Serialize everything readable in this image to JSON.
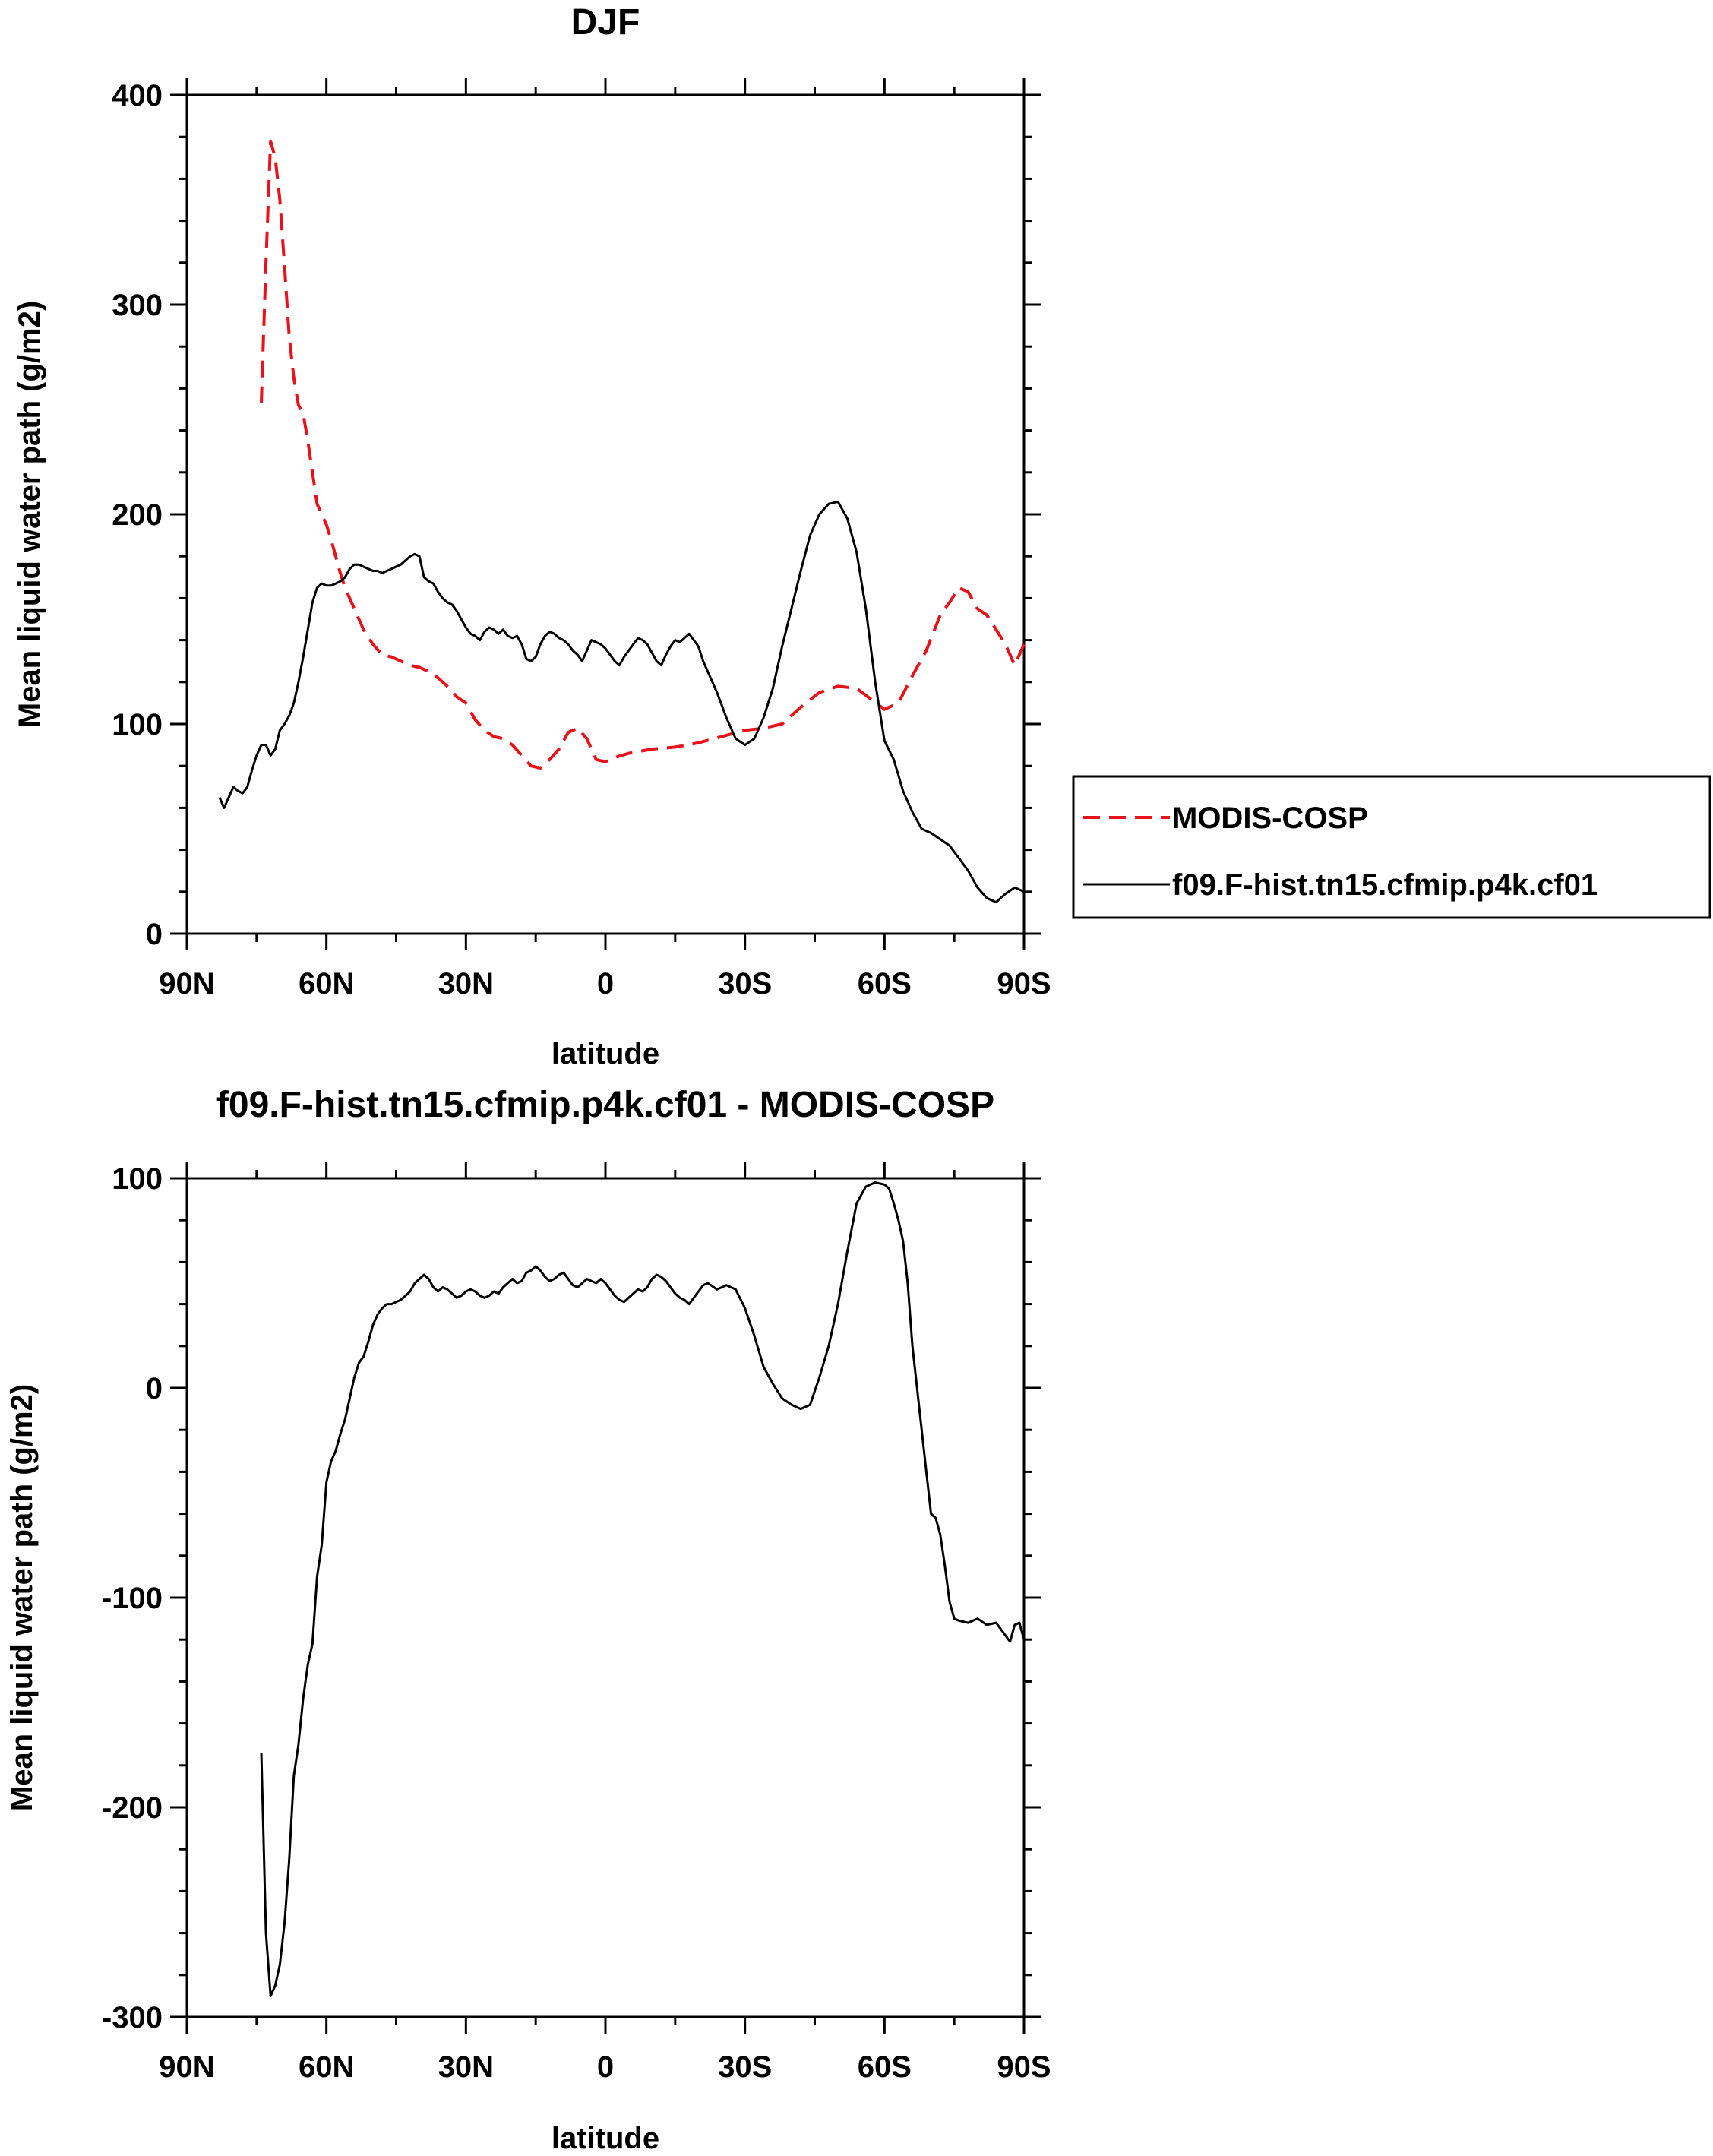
{
  "chart_data": [
    {
      "type": "line",
      "title": "DJF",
      "xlabel": "latitude",
      "ylabel": "Mean liquid water path (g/m2)",
      "xlim": [
        90,
        -90
      ],
      "ylim": [
        0,
        400
      ],
      "x_ticks": [
        {
          "value": 90,
          "label": "90N"
        },
        {
          "value": 60,
          "label": "60N"
        },
        {
          "value": 30,
          "label": "30N"
        },
        {
          "value": 0,
          "label": "0"
        },
        {
          "value": -30,
          "label": "30S"
        },
        {
          "value": -60,
          "label": "60S"
        },
        {
          "value": -90,
          "label": "90S"
        }
      ],
      "y_ticks": [
        0,
        100,
        200,
        300,
        400
      ],
      "legend_position": "right",
      "series": [
        {
          "name": "MODIS-COSP",
          "color": "#e8121a",
          "dash": "dashed",
          "x": [
            74,
            73,
            72,
            71,
            70,
            69,
            68,
            67,
            66,
            65,
            64,
            63,
            62,
            61,
            60,
            59,
            58,
            57,
            56,
            55,
            54,
            53,
            52,
            50,
            48,
            46,
            44,
            42,
            40,
            38,
            36,
            34,
            32,
            30,
            28,
            26,
            24,
            22,
            20,
            18,
            16,
            14,
            12,
            10,
            8,
            6,
            4,
            2,
            0,
            -2,
            -5,
            -10,
            -15,
            -20,
            -25,
            -30,
            -34,
            -38,
            -42,
            -46,
            -50,
            -54,
            -57,
            -60,
            -63,
            -66,
            -69,
            -72,
            -74,
            -76,
            -78,
            -80,
            -82,
            -84,
            -86,
            -88,
            -90
          ],
          "y": [
            253,
            320,
            378,
            370,
            350,
            318,
            285,
            265,
            252,
            248,
            235,
            220,
            205,
            200,
            195,
            188,
            180,
            172,
            165,
            160,
            155,
            150,
            145,
            138,
            133,
            132,
            130,
            128,
            127,
            125,
            122,
            118,
            113,
            110,
            102,
            97,
            94,
            93,
            90,
            85,
            80,
            79,
            83,
            88,
            96,
            98,
            93,
            83,
            82,
            84,
            86,
            88,
            89,
            91,
            94,
            97,
            98,
            100,
            108,
            115,
            118,
            117,
            112,
            107,
            110,
            123,
            135,
            152,
            158,
            165,
            163,
            155,
            152,
            145,
            138,
            128,
            138
          ]
        },
        {
          "name": "f09.F-hist.tn15.cfmip.p4k.cf01",
          "color": "#000000",
          "dash": "solid",
          "x": [
            83,
            82,
            81,
            80,
            79,
            78,
            77,
            76,
            75,
            74,
            73,
            72,
            71,
            70,
            69,
            68,
            67,
            66,
            65,
            64,
            63,
            62,
            61,
            60,
            59,
            58,
            57,
            56,
            55,
            54,
            53,
            52,
            51,
            50,
            49,
            48,
            47,
            46,
            45,
            44,
            43,
            42,
            41,
            40,
            39,
            38,
            37,
            36,
            35,
            34,
            33,
            32,
            31,
            30,
            29,
            28,
            27,
            26,
            25,
            24,
            23,
            22,
            21,
            20,
            19,
            18,
            17,
            16,
            15,
            14,
            13,
            12,
            11,
            10,
            9,
            8,
            7,
            6,
            5,
            4,
            3,
            2,
            1,
            0,
            -1,
            -2,
            -3,
            -4,
            -5,
            -6,
            -7,
            -8,
            -9,
            -10,
            -11,
            -12,
            -13,
            -14,
            -15,
            -16,
            -17,
            -18,
            -19,
            -20,
            -21,
            -22,
            -24,
            -26,
            -28,
            -30,
            -32,
            -34,
            -36,
            -38,
            -40,
            -42,
            -44,
            -46,
            -48,
            -50,
            -52,
            -54,
            -56,
            -58,
            -60,
            -62,
            -64,
            -66,
            -68,
            -70,
            -72,
            -74,
            -76,
            -78,
            -80,
            -82,
            -84,
            -86,
            -88,
            -90
          ],
          "y": [
            65,
            60,
            65,
            70,
            68,
            67,
            70,
            78,
            85,
            90,
            90,
            85,
            88,
            97,
            100,
            104,
            110,
            120,
            132,
            145,
            158,
            165,
            167,
            166,
            166,
            167,
            168,
            170,
            174,
            176,
            176,
            175,
            174,
            173,
            173,
            172,
            173,
            174,
            175,
            176,
            178,
            180,
            181,
            180,
            170,
            168,
            167,
            163,
            160,
            158,
            157,
            154,
            150,
            146,
            143,
            142,
            140,
            144,
            146,
            145,
            143,
            145,
            142,
            141,
            142,
            138,
            131,
            130,
            132,
            138,
            142,
            144,
            143,
            141,
            140,
            138,
            135,
            133,
            130,
            135,
            140,
            139,
            138,
            136,
            133,
            130,
            128,
            132,
            135,
            138,
            141,
            140,
            138,
            134,
            130,
            128,
            133,
            137,
            140,
            139,
            141,
            143,
            140,
            137,
            130,
            125,
            115,
            103,
            93,
            90,
            93,
            103,
            117,
            137,
            155,
            173,
            190,
            200,
            205,
            206,
            198,
            182,
            155,
            120,
            92,
            83,
            68,
            58,
            50,
            48,
            45,
            42,
            36,
            30,
            22,
            17,
            15,
            19,
            22,
            20
          ]
        }
      ]
    },
    {
      "type": "line",
      "title": "f09.F-hist.tn15.cfmip.p4k.cf01 - MODIS-COSP",
      "xlabel": "latitude",
      "ylabel": "Mean liquid water path (g/m2)",
      "xlim": [
        90,
        -90
      ],
      "ylim": [
        -300,
        100
      ],
      "x_ticks": [
        {
          "value": 90,
          "label": "90N"
        },
        {
          "value": 60,
          "label": "60N"
        },
        {
          "value": 30,
          "label": "30N"
        },
        {
          "value": 0,
          "label": "0"
        },
        {
          "value": -30,
          "label": "30S"
        },
        {
          "value": -60,
          "label": "60S"
        },
        {
          "value": -90,
          "label": "90S"
        }
      ],
      "y_ticks": [
        -300,
        -200,
        -100,
        0,
        100
      ],
      "series": [
        {
          "color": "#000000",
          "dash": "solid",
          "x": [
            74,
            73,
            72,
            71,
            70,
            69,
            68,
            67,
            66,
            65,
            64,
            63,
            62,
            61,
            60,
            59,
            58,
            57,
            56,
            55,
            54,
            53,
            52,
            51,
            50,
            49,
            48,
            47,
            46,
            45,
            44,
            43,
            42,
            41,
            40,
            39,
            38,
            37,
            36,
            35,
            34,
            33,
            32,
            31,
            30,
            29,
            28,
            27,
            26,
            25,
            24,
            23,
            22,
            21,
            20,
            19,
            18,
            17,
            16,
            15,
            14,
            13,
            12,
            11,
            10,
            9,
            8,
            7,
            6,
            5,
            4,
            3,
            2,
            1,
            0,
            -1,
            -2,
            -3,
            -4,
            -5,
            -6,
            -7,
            -8,
            -9,
            -10,
            -11,
            -12,
            -13,
            -14,
            -15,
            -16,
            -17,
            -18,
            -19,
            -20,
            -21,
            -22,
            -24,
            -26,
            -28,
            -30,
            -32,
            -34,
            -36,
            -38,
            -40,
            -42,
            -44,
            -46,
            -48,
            -50,
            -52,
            -54,
            -56,
            -58,
            -60,
            -61,
            -62,
            -63,
            -64,
            -65,
            -66,
            -67,
            -68,
            -69,
            -70,
            -71,
            -72,
            -73,
            -74,
            -75,
            -76,
            -78,
            -80,
            -82,
            -84,
            -86,
            -87,
            -88,
            -89,
            -90
          ],
          "y": [
            -174,
            -260,
            -290,
            -285,
            -275,
            -255,
            -225,
            -185,
            -170,
            -148,
            -132,
            -122,
            -90,
            -75,
            -45,
            -35,
            -30,
            -22,
            -15,
            -5,
            5,
            12,
            15,
            22,
            30,
            35,
            38,
            40,
            40,
            41,
            42,
            44,
            46,
            50,
            52,
            54,
            52,
            48,
            46,
            48,
            47,
            45,
            43,
            44,
            46,
            47,
            46,
            44,
            43,
            44,
            46,
            45,
            48,
            50,
            52,
            50,
            51,
            55,
            56,
            58,
            56,
            53,
            51,
            52,
            54,
            55,
            52,
            49,
            48,
            50,
            52,
            51,
            50,
            52,
            50,
            47,
            44,
            42,
            41,
            43,
            45,
            47,
            46,
            48,
            52,
            54,
            53,
            51,
            48,
            45,
            43,
            42,
            40,
            43,
            46,
            49,
            50,
            47,
            49,
            47,
            38,
            25,
            10,
            2,
            -5,
            -8,
            -10,
            -8,
            5,
            20,
            40,
            65,
            88,
            96,
            98,
            97,
            95,
            88,
            80,
            70,
            50,
            20,
            0,
            -20,
            -40,
            -60,
            -62,
            -70,
            -85,
            -102,
            -110,
            -111,
            -112,
            -110,
            -113,
            -112,
            -118,
            -121,
            -113,
            -112,
            -120
          ]
        }
      ]
    }
  ]
}
